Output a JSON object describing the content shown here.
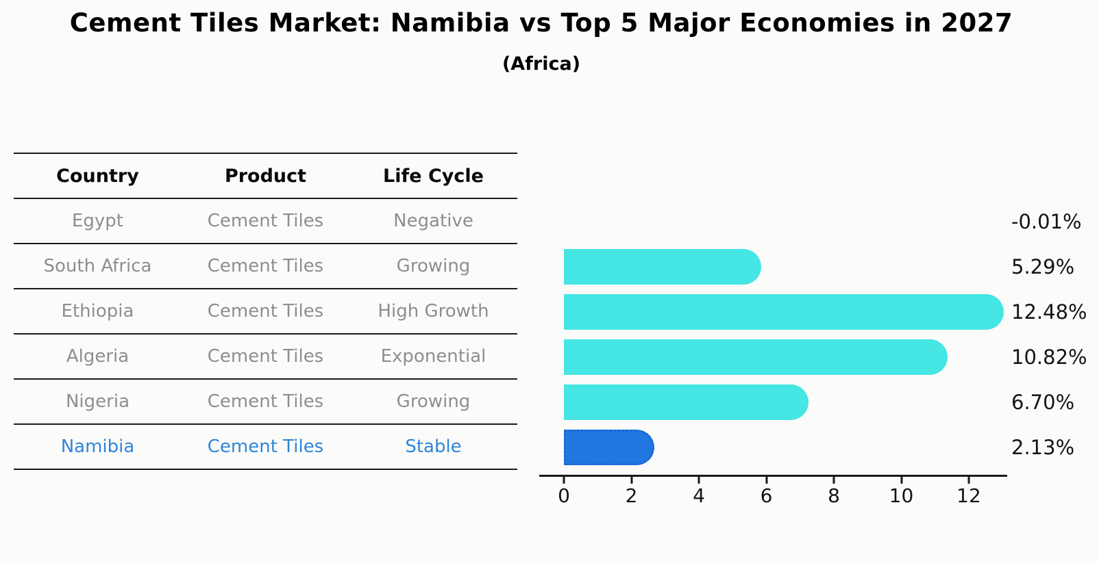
{
  "title": "Cement Tiles Market: Namibia vs Top 5 Major Economies in 2027",
  "subtitle": "(Africa)",
  "table": {
    "headers": [
      "Country",
      "Product",
      "Life Cycle"
    ],
    "rows": [
      {
        "country": "Egypt",
        "product": "Cement Tiles",
        "life_cycle": "Negative"
      },
      {
        "country": "South Africa",
        "product": "Cement Tiles",
        "life_cycle": "Growing"
      },
      {
        "country": "Ethiopia",
        "product": "Cement Tiles",
        "life_cycle": "High Growth"
      },
      {
        "country": "Algeria",
        "product": "Cement Tiles",
        "life_cycle": "Exponential"
      },
      {
        "country": "Nigeria",
        "product": "Cement Tiles",
        "life_cycle": "Growing"
      },
      {
        "country": "Namibia",
        "product": "Cement Tiles",
        "life_cycle": "Stable"
      }
    ],
    "highlight_row": 5
  },
  "chart_data": {
    "type": "bar",
    "orientation": "horizontal",
    "title": "Cement Tiles Market: Namibia vs Top 5 Major Economies in 2027",
    "subtitle": "(Africa)",
    "categories": [
      "Egypt",
      "South Africa",
      "Ethiopia",
      "Algeria",
      "Nigeria",
      "Namibia"
    ],
    "values": [
      -0.01,
      5.29,
      12.48,
      10.82,
      6.7,
      2.13
    ],
    "labels": [
      "-0.01%",
      "5.29%",
      "12.48%",
      "10.82%",
      "6.70%",
      "2.13%"
    ],
    "xlim": [
      0,
      13.2
    ],
    "x_ticks": [
      0,
      2,
      4,
      6,
      8,
      10,
      12
    ],
    "grid": false,
    "legend": "none",
    "bar_color": "#45E6E3",
    "highlight_index": 5,
    "highlight_color": "#2176E0",
    "highlight_border": "#1A67D2"
  },
  "colors": {
    "background": "#FBFBFA",
    "text": "#000000",
    "muted_text": "#8E8E8E",
    "highlight_text": "#2E86D9",
    "line": "#1A1A1A"
  }
}
